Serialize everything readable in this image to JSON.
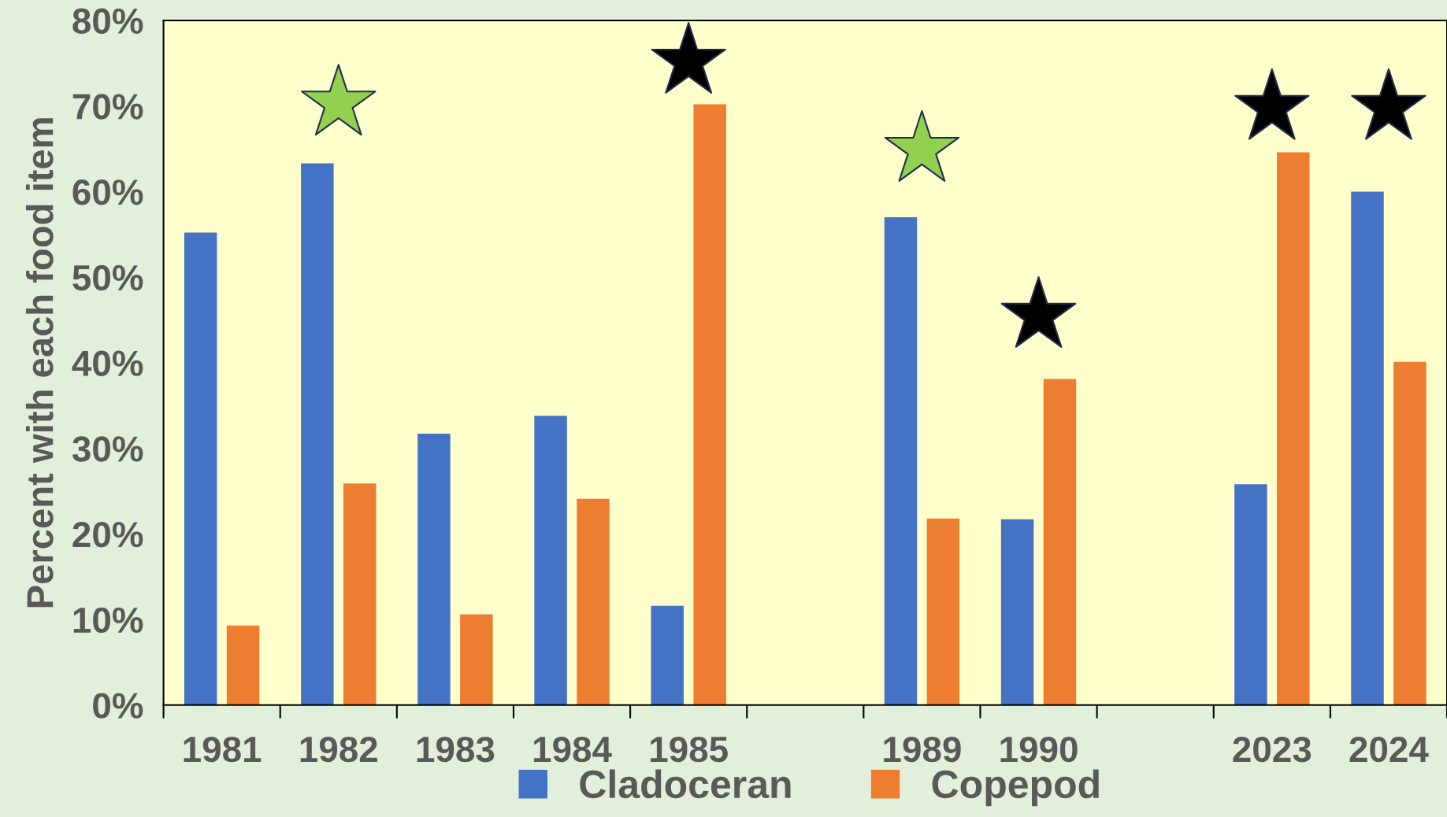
{
  "chart_data": {
    "type": "bar",
    "ylabel": "Percent with each food item",
    "categories": [
      "1981",
      "1982",
      "1983",
      "1984",
      "1985",
      null,
      "1989",
      "1990",
      null,
      "2023",
      "2024"
    ],
    "series": [
      {
        "name": "Cladoceran",
        "color": "#4472c4",
        "values": [
          55.2,
          63.3,
          31.7,
          33.8,
          11.6,
          null,
          57.0,
          21.7,
          null,
          25.8,
          60.0
        ]
      },
      {
        "name": "Copepod",
        "color": "#ed7d31",
        "values": [
          9.3,
          25.9,
          10.6,
          24.1,
          70.2,
          null,
          21.8,
          38.1,
          null,
          64.6,
          40.1
        ]
      },
      {
        "type": "scatter",
        "marker": "star",
        "color": "#92d050",
        "values": [
          null,
          70.3,
          null,
          null,
          null,
          null,
          64.9,
          null,
          null,
          null,
          null
        ]
      },
      {
        "type": "scatter",
        "marker": "star",
        "color": "#000000",
        "values": [
          null,
          null,
          null,
          null,
          75.2,
          null,
          null,
          45.5,
          null,
          69.8,
          69.8
        ]
      }
    ],
    "ylim": [
      0,
      80
    ],
    "yticks": [
      {
        "value": 0,
        "label": "0%"
      },
      {
        "value": 10,
        "label": "10%"
      },
      {
        "value": 20,
        "label": "20%"
      },
      {
        "value": 30,
        "label": "30%"
      },
      {
        "value": 40,
        "label": "40%"
      },
      {
        "value": 50,
        "label": "50%"
      },
      {
        "value": 60,
        "label": "60%"
      },
      {
        "value": 70,
        "label": "70%"
      },
      {
        "value": 80,
        "label": "80%"
      }
    ],
    "grid": false,
    "legend": "bottom"
  }
}
